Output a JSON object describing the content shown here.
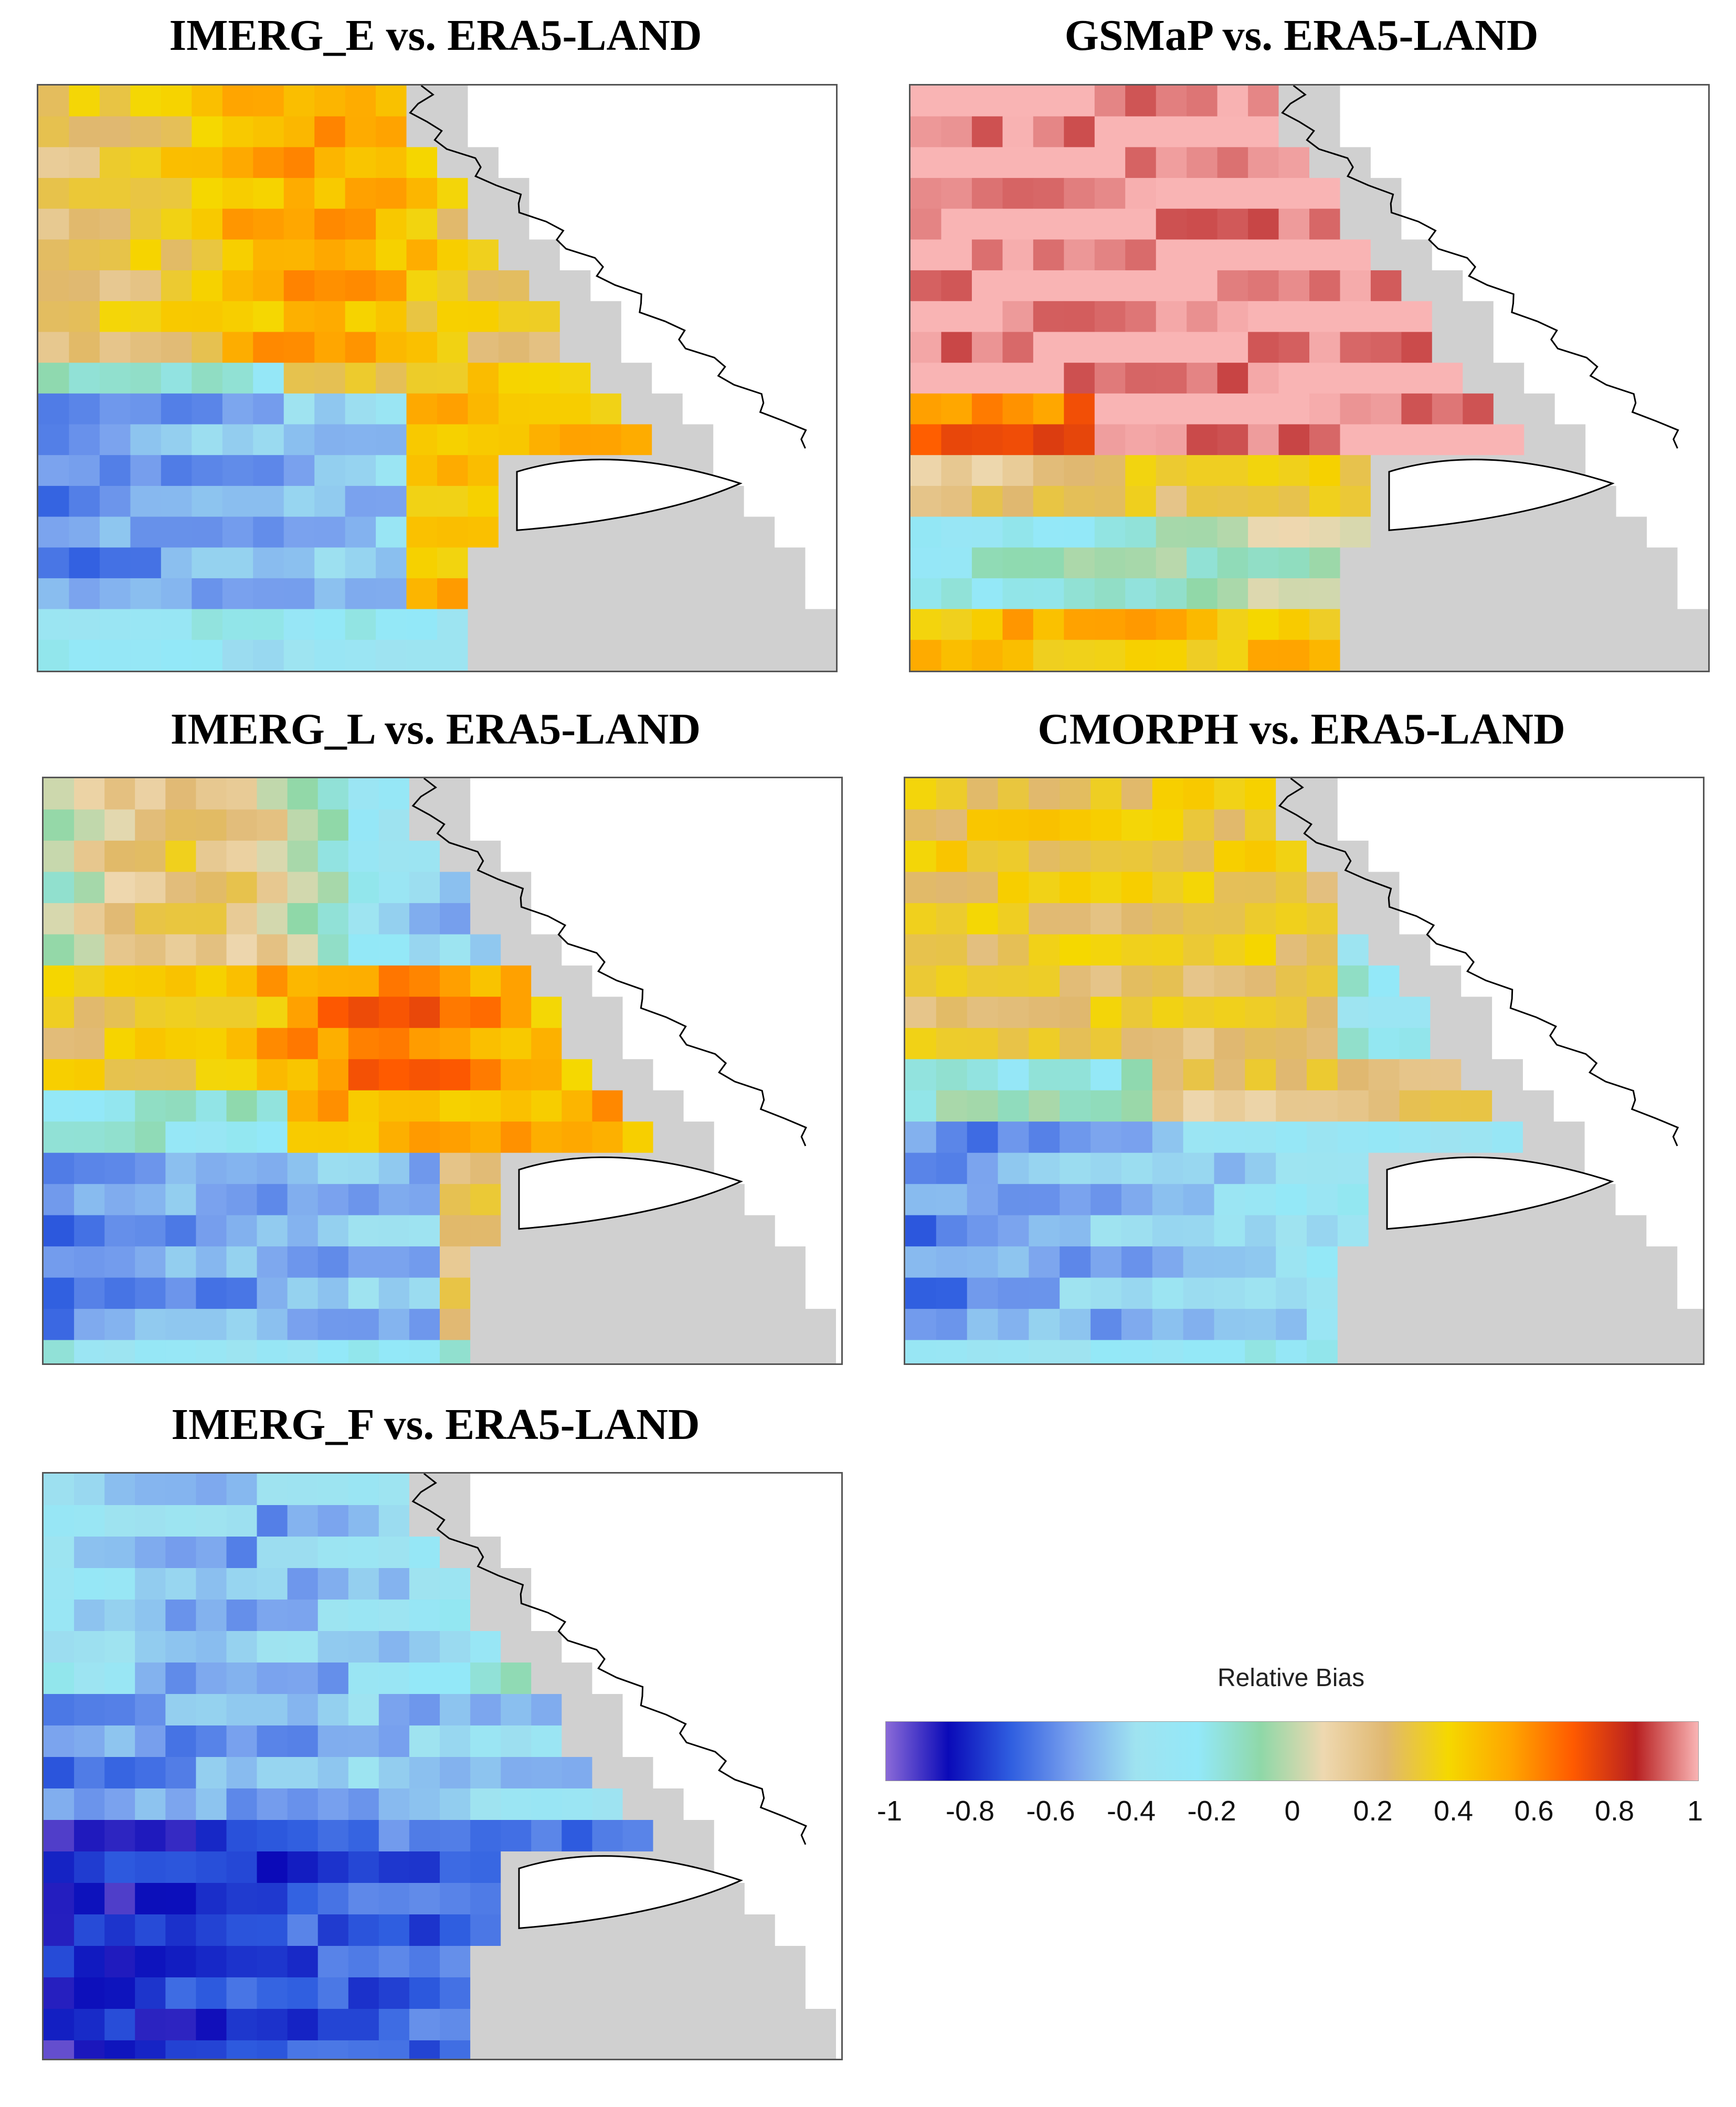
{
  "panels": [
    {
      "title": "IMERG_E vs. ERA5-LAND",
      "pattern": "imerg_e"
    },
    {
      "title": "GSMaP vs. ERA5-LAND",
      "pattern": "gsmap"
    },
    {
      "title": "IMERG_L vs. ERA5-LAND",
      "pattern": "imerg_l"
    },
    {
      "title": "CMORPH vs. ERA5-LAND",
      "pattern": "cmorph"
    },
    {
      "title": "IMERG_F vs. ERA5-LAND",
      "pattern": "imerg_f"
    }
  ],
  "legend": {
    "title": "Relative Bias",
    "ticks": [
      "-1",
      "-0.8",
      "-0.6",
      "-0.4",
      "-0.2",
      "0",
      "0.2",
      "0.4",
      "0.6",
      "0.8",
      "1"
    ],
    "range": [
      -1,
      1
    ]
  },
  "colors": {
    "land_grey": "#d0d0d0",
    "coast": "#000000",
    "scale": [
      "#8b6bd8",
      "#0a0ab8",
      "#2f5ee0",
      "#7aa2ee",
      "#9fe3f0",
      "#93e8f8",
      "#8fd8a8",
      "#eed8b0",
      "#e0b870",
      "#f5d800",
      "#ffa500",
      "#ff5a00",
      "#b82020",
      "#f9b4b4"
    ]
  }
}
